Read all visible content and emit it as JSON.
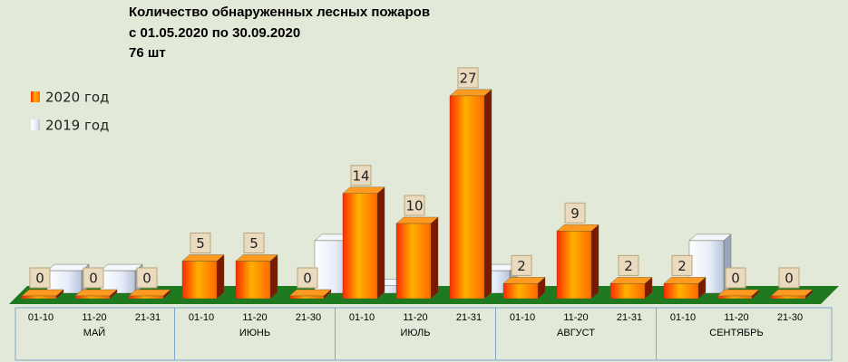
{
  "chart_data": {
    "type": "bar3d",
    "title": "Количество обнаруженных лесных пожаров",
    "subtitle": "с 01.05.2020  по  30.09.2020",
    "annotation": "76 шт",
    "groups": [
      {
        "label": "МАЙ",
        "categories": [
          "01-10",
          "11-20",
          "21-31"
        ]
      },
      {
        "label": "ИЮНЬ",
        "categories": [
          "01-10",
          "11-20",
          "21-30"
        ]
      },
      {
        "label": "ИЮЛЬ",
        "categories": [
          "01-10",
          "11-20",
          "21-31"
        ]
      },
      {
        "label": "АВГУСТ",
        "categories": [
          "01-10",
          "11-20",
          "21-31"
        ]
      },
      {
        "label": "СЕНТЯБРЬ",
        "categories": [
          "01-10",
          "11-20",
          "21-30"
        ]
      }
    ],
    "series": [
      {
        "name": "2020 год",
        "color": "#ff8c00",
        "values": [
          [
            0,
            0,
            0
          ],
          [
            5,
            5,
            0
          ],
          [
            14,
            10,
            27
          ],
          [
            2,
            9,
            2
          ],
          [
            2,
            0,
            0
          ]
        ]
      },
      {
        "name": "2019 год",
        "color": "#dfe6f5",
        "values": [
          [
            3,
            3,
            0
          ],
          [
            0,
            0,
            7
          ],
          [
            1,
            0,
            3
          ],
          [
            0,
            0,
            0
          ],
          [
            7,
            0,
            0
          ]
        ]
      }
    ],
    "legend": "left"
  }
}
